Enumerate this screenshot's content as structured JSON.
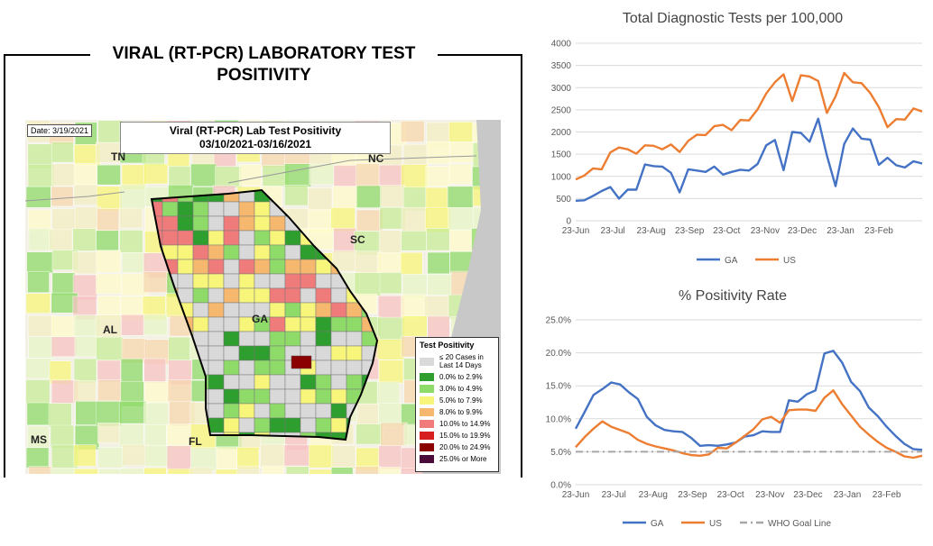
{
  "map": {
    "title": "VIRAL (RT-PCR) LABORATORY TEST POSITIVITY",
    "date_label": "Date: 3/19/2021",
    "subtitle_line1": "Viral (RT-PCR) Lab Test Positivity",
    "subtitle_line2": "03/10/2021-03/16/2021",
    "state_labels": {
      "tn": "TN",
      "nc": "NC",
      "sc": "SC",
      "al": "AL",
      "ga": "GA",
      "fl": "FL",
      "ms": "MS"
    },
    "legend": {
      "title": "Test Positivity",
      "items": [
        {
          "label": "≤ 20 Cases in Last 14 Days",
          "color": "#d9d9d9"
        },
        {
          "label": "0.0% to 2.9%",
          "color": "#2e9e2e"
        },
        {
          "label": "3.0% to 4.9%",
          "color": "#8fdb6a"
        },
        {
          "label": "5.0% to 7.9%",
          "color": "#f7f57a"
        },
        {
          "label": "8.0% to 9.9%",
          "color": "#f5b86e"
        },
        {
          "label": "10.0% to 14.9%",
          "color": "#f07b7b"
        },
        {
          "label": "15.0% to 19.9%",
          "color": "#d61f1f"
        },
        {
          "label": "20.0% to 24.9%",
          "color": "#8b0000"
        },
        {
          "label": "25.0% or More",
          "color": "#4a0a3a"
        }
      ]
    }
  },
  "chart_data": [
    {
      "type": "line",
      "title": "Total Diagnostic Tests per 100,000",
      "x_tick_labels": [
        "23-Jun",
        "23-Jul",
        "23-Aug",
        "23-Sep",
        "23-Oct",
        "23-Nov",
        "23-Dec",
        "23-Jan",
        "23-Feb"
      ],
      "x_start": "2020-06-23",
      "x_step_days": 7,
      "ylim": [
        0,
        4000
      ],
      "y_ticks": [
        "0",
        "500",
        "1000",
        "1500",
        "2000",
        "2500",
        "3000",
        "3500",
        "4000"
      ],
      "grid": true,
      "legend_position": "bottom",
      "series": [
        {
          "name": "GA",
          "color": "#4472c4",
          "values": [
            450,
            460,
            560,
            670,
            760,
            500,
            700,
            700,
            1270,
            1230,
            1220,
            1080,
            640,
            1160,
            1130,
            1100,
            1220,
            1040,
            1100,
            1150,
            1130,
            1280,
            1700,
            1820,
            1140,
            2000,
            1980,
            1780,
            2300,
            1470,
            780,
            1730,
            2080,
            1850,
            1830,
            1260,
            1420,
            1250,
            1200,
            1340,
            1290
          ]
        },
        {
          "name": "US",
          "color": "#ed7d31",
          "values": [
            930,
            1020,
            1180,
            1160,
            1540,
            1650,
            1610,
            1510,
            1700,
            1690,
            1610,
            1720,
            1550,
            1800,
            1940,
            1930,
            2130,
            2160,
            2040,
            2270,
            2260,
            2510,
            2870,
            3120,
            3300,
            2700,
            3280,
            3250,
            3150,
            2430,
            2800,
            3330,
            3120,
            3100,
            2880,
            2560,
            2110,
            2290,
            2280,
            2530,
            2460
          ]
        }
      ]
    },
    {
      "type": "line",
      "title": "% Positivity Rate",
      "x_tick_labels": [
        "23-Jun",
        "23-Jul",
        "23-Aug",
        "23-Sep",
        "23-Oct",
        "23-Nov",
        "23-Dec",
        "23-Jan",
        "23-Feb"
      ],
      "x_start": "2020-06-23",
      "x_step_days": 7,
      "ylim": [
        0,
        25
      ],
      "y_ticks": [
        "0.0%",
        "5.0%",
        "10.0%",
        "15.0%",
        "20.0%",
        "25.0%"
      ],
      "grid": true,
      "legend_position": "bottom",
      "series": [
        {
          "name": "GA",
          "color": "#4472c4",
          "dash": "",
          "values": [
            8.5,
            11.0,
            13.6,
            14.5,
            15.5,
            15.2,
            14.0,
            13.0,
            10.3,
            9.0,
            8.3,
            8.1,
            8.0,
            7.1,
            5.9,
            6.0,
            5.9,
            6.1,
            6.4,
            7.3,
            7.5,
            8.1,
            8.0,
            8.0,
            12.8,
            12.6,
            13.7,
            14.3,
            19.9,
            20.3,
            18.5,
            15.6,
            14.2,
            11.7,
            10.4,
            8.8,
            7.4,
            6.2,
            5.4,
            5.3
          ]
        },
        {
          "name": "US",
          "color": "#ed7d31",
          "dash": "",
          "values": [
            5.7,
            7.2,
            8.5,
            9.6,
            8.8,
            8.3,
            7.8,
            6.8,
            6.2,
            5.8,
            5.5,
            5.2,
            4.8,
            4.5,
            4.4,
            4.6,
            5.6,
            5.5,
            6.4,
            7.4,
            8.4,
            9.9,
            10.3,
            9.4,
            11.3,
            11.4,
            11.4,
            11.2,
            13.2,
            14.3,
            12.2,
            10.5,
            8.8,
            7.6,
            6.5,
            5.6,
            5.0,
            4.3,
            4.1,
            4.4
          ]
        },
        {
          "name": "WHO Goal Line",
          "color": "#a6a6a6",
          "dash": "8,4,2,4",
          "values": [
            5,
            5,
            5,
            5,
            5,
            5,
            5,
            5,
            5,
            5,
            5,
            5,
            5,
            5,
            5,
            5,
            5,
            5,
            5,
            5,
            5,
            5,
            5,
            5,
            5,
            5,
            5,
            5,
            5,
            5,
            5,
            5,
            5,
            5,
            5,
            5,
            5,
            5,
            5,
            5
          ]
        }
      ]
    }
  ]
}
